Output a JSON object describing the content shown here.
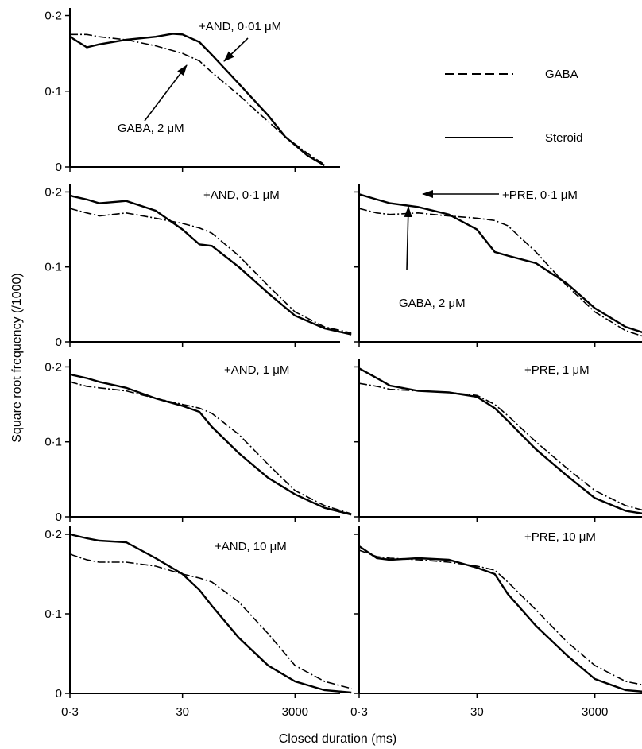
{
  "figure": {
    "ylabel": "Square root frequency (/1000)",
    "xlabel": "Closed duration (ms)",
    "legend": {
      "gaba": "GABA",
      "steroid": "Steroid"
    }
  },
  "chart_data": {
    "type": "line",
    "x_scale": "log",
    "x_ticks": [
      "0·3",
      "30",
      "3000"
    ],
    "y_ticks": [
      "0",
      "0·1",
      "0·2"
    ],
    "ylim": [
      0,
      0.21
    ],
    "xlim_ms": [
      0.3,
      30000
    ],
    "legend": [
      "GABA",
      "Steroid"
    ],
    "legend_position": "right of top panel",
    "panels": [
      {
        "id": "and-001",
        "label": "+AND, 0·01 μM",
        "extra_label": "GABA, 2 μM",
        "gaba": {
          "x": [
            0.3,
            0.6,
            1,
            3,
            10,
            30,
            60,
            100,
            300,
            1000,
            2000,
            5000,
            10000
          ],
          "y": [
            0.175,
            0.175,
            0.172,
            0.168,
            0.16,
            0.15,
            0.14,
            0.125,
            0.095,
            0.06,
            0.04,
            0.018,
            0.003
          ]
        },
        "steroid": {
          "x": [
            0.3,
            0.6,
            1,
            3,
            10,
            20,
            30,
            60,
            100,
            300,
            1000,
            2000,
            5000,
            10000
          ],
          "y": [
            0.172,
            0.158,
            0.162,
            0.168,
            0.172,
            0.176,
            0.175,
            0.165,
            0.148,
            0.11,
            0.068,
            0.04,
            0.015,
            0.002
          ]
        }
      },
      {
        "id": "and-01",
        "label": "+AND, 0·1 μM",
        "gaba": {
          "x": [
            0.3,
            0.6,
            1,
            3,
            10,
            30,
            60,
            100,
            300,
            1000,
            3000,
            10000,
            30000
          ],
          "y": [
            0.178,
            0.172,
            0.168,
            0.172,
            0.165,
            0.158,
            0.152,
            0.145,
            0.115,
            0.075,
            0.04,
            0.02,
            0.012
          ]
        },
        "steroid": {
          "x": [
            0.3,
            0.6,
            1,
            3,
            10,
            30,
            60,
            100,
            300,
            1000,
            3000,
            10000,
            30000
          ],
          "y": [
            0.195,
            0.19,
            0.185,
            0.188,
            0.175,
            0.15,
            0.13,
            0.128,
            0.1,
            0.065,
            0.035,
            0.018,
            0.01
          ]
        }
      },
      {
        "id": "pre-01",
        "label": "+PRE, 0·1 μM",
        "extra_label": "GABA, 2 μM",
        "gaba": {
          "x": [
            0.3,
            0.6,
            1,
            3,
            10,
            30,
            60,
            100,
            300,
            1000,
            3000,
            10000,
            30000
          ],
          "y": [
            0.178,
            0.172,
            0.17,
            0.172,
            0.168,
            0.165,
            0.162,
            0.155,
            0.12,
            0.075,
            0.04,
            0.015,
            0.003
          ]
        },
        "steroid": {
          "x": [
            0.3,
            0.6,
            1,
            3,
            10,
            30,
            60,
            100,
            300,
            1000,
            3000,
            10000,
            30000
          ],
          "y": [
            0.197,
            0.19,
            0.185,
            0.18,
            0.17,
            0.15,
            0.12,
            0.115,
            0.105,
            0.078,
            0.045,
            0.02,
            0.008
          ]
        }
      },
      {
        "id": "and-1",
        "label": "+AND, 1 μM",
        "gaba": {
          "x": [
            0.3,
            0.6,
            1,
            3,
            10,
            30,
            60,
            100,
            300,
            1000,
            3000,
            10000,
            30000
          ],
          "y": [
            0.18,
            0.174,
            0.172,
            0.168,
            0.158,
            0.15,
            0.145,
            0.138,
            0.11,
            0.07,
            0.035,
            0.015,
            0.004
          ]
        },
        "steroid": {
          "x": [
            0.3,
            0.6,
            1,
            3,
            10,
            30,
            60,
            100,
            300,
            1000,
            3000,
            10000,
            30000
          ],
          "y": [
            0.19,
            0.185,
            0.18,
            0.172,
            0.158,
            0.148,
            0.14,
            0.12,
            0.085,
            0.052,
            0.03,
            0.012,
            0.003
          ]
        }
      },
      {
        "id": "pre-1",
        "label": "+PRE, 1 μM",
        "gaba": {
          "x": [
            0.3,
            0.6,
            1,
            3,
            10,
            30,
            60,
            100,
            300,
            1000,
            3000,
            10000,
            30000
          ],
          "y": [
            0.178,
            0.174,
            0.17,
            0.168,
            0.166,
            0.162,
            0.15,
            0.135,
            0.1,
            0.065,
            0.035,
            0.015,
            0.005
          ]
        },
        "steroid": {
          "x": [
            0.3,
            0.6,
            1,
            3,
            10,
            30,
            60,
            100,
            300,
            1000,
            3000,
            10000,
            30000
          ],
          "y": [
            0.198,
            0.185,
            0.175,
            0.168,
            0.166,
            0.16,
            0.145,
            0.128,
            0.09,
            0.055,
            0.025,
            0.008,
            0.002
          ]
        }
      },
      {
        "id": "and-10",
        "label": "+AND, 10 μM",
        "gaba": {
          "x": [
            0.3,
            0.6,
            1,
            3,
            10,
            30,
            60,
            100,
            300,
            1000,
            3000,
            10000,
            30000
          ],
          "y": [
            0.175,
            0.168,
            0.165,
            0.165,
            0.16,
            0.15,
            0.145,
            0.14,
            0.115,
            0.075,
            0.035,
            0.015,
            0.006
          ]
        },
        "steroid": {
          "x": [
            0.3,
            0.6,
            1,
            3,
            10,
            30,
            60,
            100,
            300,
            1000,
            3000,
            10000,
            30000
          ],
          "y": [
            0.2,
            0.195,
            0.192,
            0.19,
            0.17,
            0.15,
            0.13,
            0.11,
            0.07,
            0.035,
            0.015,
            0.004,
            0.001
          ]
        }
      },
      {
        "id": "pre-10",
        "label": "+PRE, 10 μM",
        "gaba": {
          "x": [
            0.3,
            0.6,
            1,
            3,
            10,
            30,
            60,
            100,
            300,
            1000,
            3000,
            10000,
            30000
          ],
          "y": [
            0.18,
            0.172,
            0.17,
            0.168,
            0.165,
            0.16,
            0.155,
            0.14,
            0.105,
            0.065,
            0.035,
            0.015,
            0.008
          ]
        },
        "steroid": {
          "x": [
            0.3,
            0.6,
            1,
            3,
            10,
            30,
            60,
            100,
            300,
            1000,
            3000,
            10000,
            30000
          ],
          "y": [
            0.185,
            0.17,
            0.168,
            0.17,
            0.168,
            0.158,
            0.15,
            0.125,
            0.085,
            0.048,
            0.018,
            0.004,
            0.001
          ]
        }
      }
    ]
  }
}
